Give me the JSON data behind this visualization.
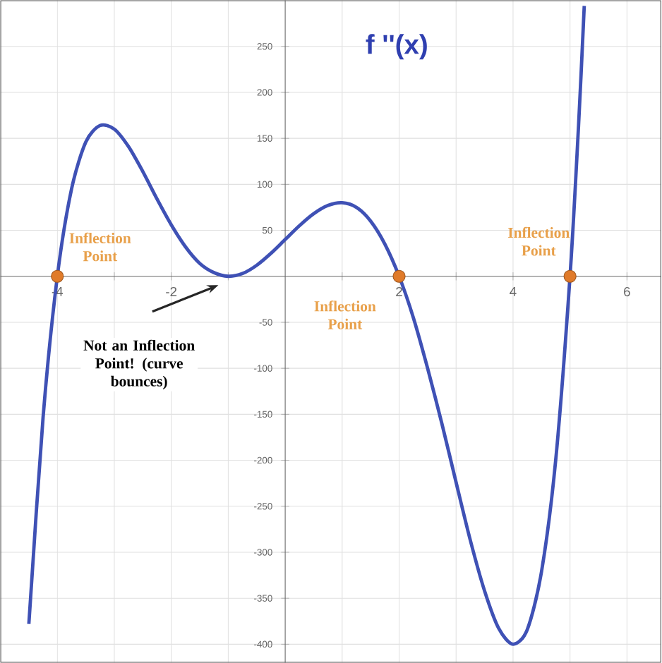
{
  "chart_data": {
    "type": "line",
    "title": "f ''(x)",
    "xlim": [
      -5,
      6.6
    ],
    "ylim": [
      -420,
      300
    ],
    "xticks": [
      {
        "value": -4,
        "label": "-4"
      },
      {
        "value": -3,
        "label": null
      },
      {
        "value": -2,
        "label": "-2"
      },
      {
        "value": -1,
        "label": null
      },
      {
        "value": 1,
        "label": null
      },
      {
        "value": 2,
        "label": "2"
      },
      {
        "value": 3,
        "label": null
      },
      {
        "value": 4,
        "label": "4"
      },
      {
        "value": 5,
        "label": null
      },
      {
        "value": 6,
        "label": "6"
      }
    ],
    "yticks": [
      -400,
      -350,
      -300,
      -250,
      -200,
      -150,
      -100,
      -50,
      50,
      100,
      150,
      200,
      250
    ],
    "grid": true,
    "series": [
      {
        "color": "#3f51b5",
        "marker": "none",
        "x": [
          -4.5,
          -4.25,
          -4,
          -3.75,
          -3.5,
          -3.25,
          -3,
          -2.75,
          -2.5,
          -2.25,
          -2,
          -1.75,
          -1.5,
          -1.25,
          -1,
          -0.75,
          -0.5,
          -0.25,
          0,
          0.25,
          0.5,
          0.75,
          1,
          1.25,
          1.5,
          1.75,
          2,
          2.25,
          2.5,
          2.75,
          3,
          3.25,
          3.5,
          3.75,
          4,
          4.25,
          4.5,
          4.75,
          5,
          5.15,
          5.25
        ],
        "values": [
          -378,
          -153,
          0,
          95,
          146,
          164,
          160,
          141,
          114,
          84,
          56,
          32,
          14,
          4,
          0,
          3,
          12,
          25,
          40,
          55,
          68,
          77,
          80,
          75,
          60,
          35,
          0,
          -45,
          -100,
          -160,
          -224,
          -287,
          -342,
          -383,
          -400,
          -384,
          -321,
          -199,
          0,
          164,
          294
        ]
      },
      {
        "type": "scatter",
        "color": "#e07b2a",
        "marker": "circle",
        "x": [
          -4,
          2,
          5
        ],
        "values": [
          0,
          0,
          0
        ]
      }
    ],
    "annotations": [
      {
        "text": "Inflection Point",
        "x": -4,
        "y": 0
      },
      {
        "text": "Inflection Point",
        "x": 2,
        "y": 0
      },
      {
        "text": "Inflection Point",
        "x": 5,
        "y": 0
      },
      "Not an Inflection Point! (curve bounces)"
    ]
  }
}
